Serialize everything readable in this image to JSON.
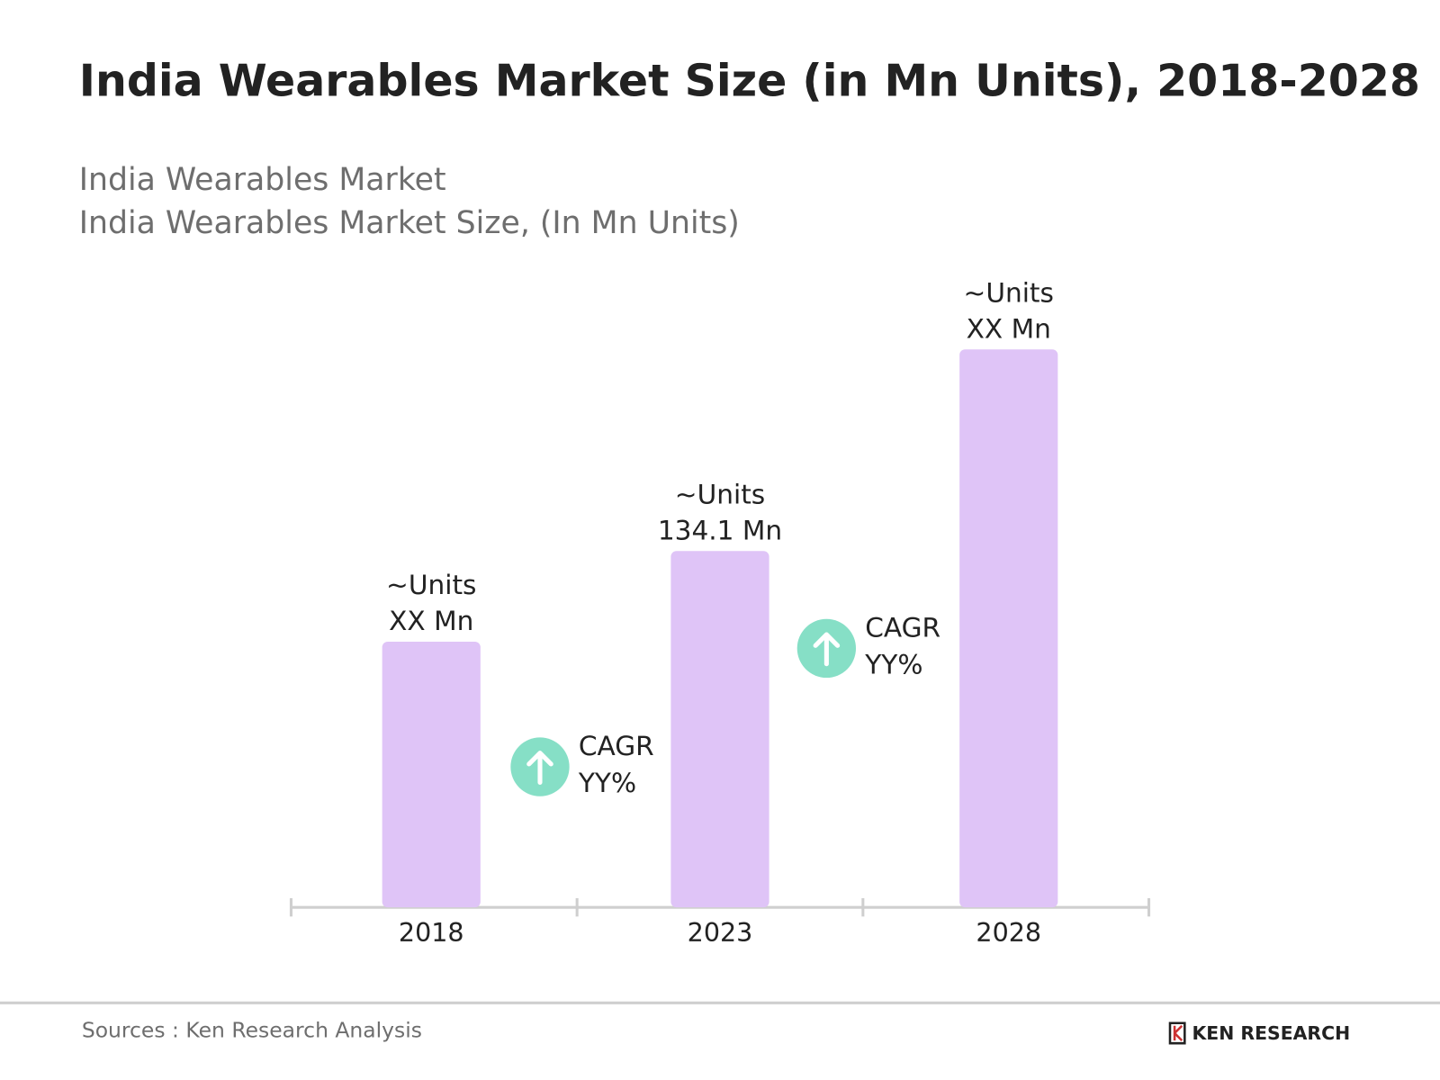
{
  "chart_data": {
    "type": "bar",
    "title": "India Wearables Market Size (in Mn Units), 2018-2028",
    "subtitle": [
      "India Wearables Market",
      "India Wearables Market Size, (In Mn Units)"
    ],
    "categories": [
      "2018",
      "2023",
      "2028"
    ],
    "values": [
      100,
      134.1,
      210
    ],
    "value_labels": [
      [
        "~Units",
        "XX Mn"
      ],
      [
        "~Units",
        "134.1 Mn"
      ],
      [
        "~Units",
        "XX Mn"
      ]
    ],
    "color": "#dfc4f7",
    "annotations": [
      {
        "lines": [
          "CAGR",
          "YY%"
        ]
      },
      {
        "lines": [
          "CAGR",
          "YY%"
        ]
      }
    ],
    "annotation_color": "#86dfc6",
    "source": "Sources : Ken Research Analysis",
    "brand": "KEN RESEARCH"
  }
}
